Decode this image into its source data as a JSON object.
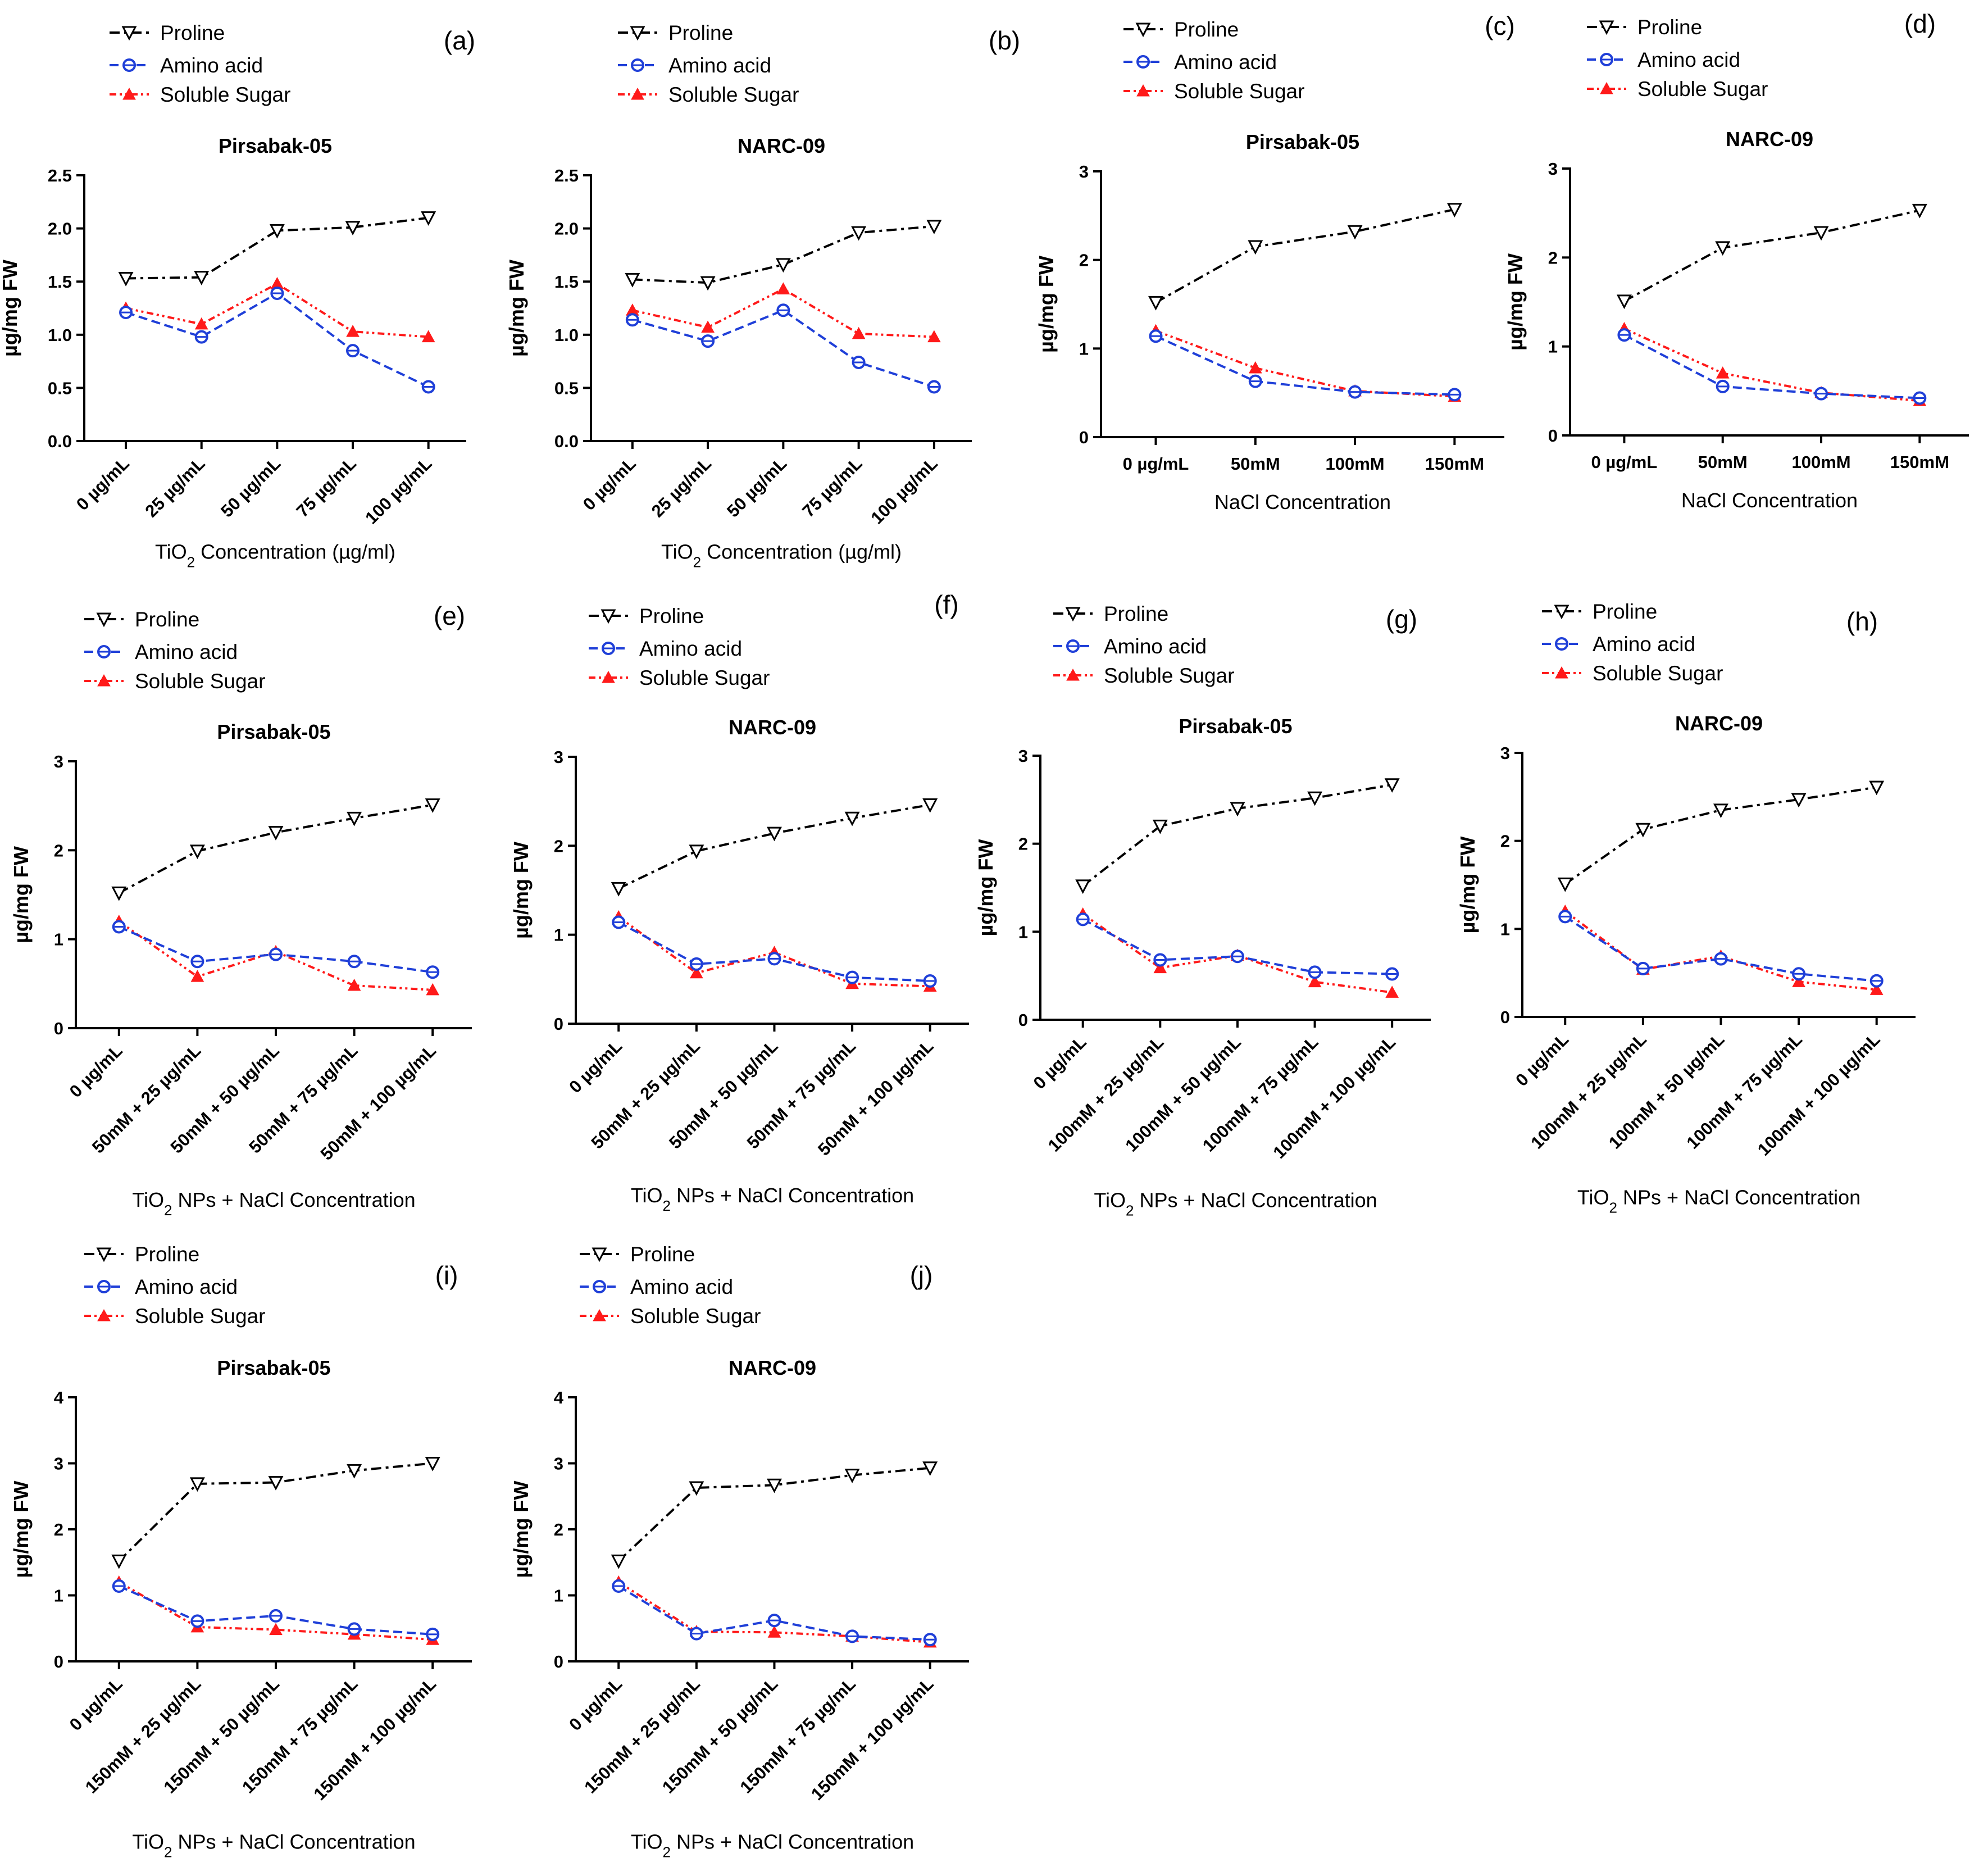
{
  "figure": {
    "legend_labels": [
      "Proline",
      "Amino acid",
      "Soluble Sugar"
    ],
    "series_colors": {
      "Proline": "#000000",
      "Amino acid": "#1f3fd8",
      "Soluble Sugar": "#ff1a1a"
    },
    "y_unit_label": "µg/mg FW"
  },
  "chart_data": [
    {
      "type": "line",
      "panel": "(a)",
      "title": "Pirsabak-05",
      "categories": [
        "0 µg/mL",
        "25 µg/mL",
        "50 µg/mL",
        "75 µg/mL",
        "100 µg/mL"
      ],
      "xlabel_main": "TiO",
      "xlabel_sub": "2",
      "xlabel_rest": " Concentration (µg/ml)",
      "ylabel": "µg/mg FW",
      "ylim": [
        0,
        2.5
      ],
      "yticks": [
        "0.0",
        "0.5",
        "1.0",
        "1.5",
        "2.0",
        "2.5"
      ],
      "series": [
        {
          "name": "Proline",
          "values": [
            1.53,
            1.54,
            1.98,
            2.01,
            2.1
          ]
        },
        {
          "name": "Amino acid",
          "values": [
            1.21,
            0.98,
            1.39,
            0.85,
            0.51
          ]
        },
        {
          "name": "Soluble Sugar",
          "values": [
            1.25,
            1.1,
            1.48,
            1.03,
            0.98
          ]
        }
      ]
    },
    {
      "type": "line",
      "panel": "(b)",
      "title": "NARC-09",
      "categories": [
        "0 µg/mL",
        "25 µg/mL",
        "50 µg/mL",
        "75 µg/mL",
        "100 µg/mL"
      ],
      "xlabel_main": "TiO",
      "xlabel_sub": "2",
      "xlabel_rest": " Concentration (µg/ml)",
      "ylabel": "µg/mg FW",
      "ylim": [
        0,
        2.5
      ],
      "yticks": [
        "0.0",
        "0.5",
        "1.0",
        "1.5",
        "2.0",
        "2.5"
      ],
      "series": [
        {
          "name": "Proline",
          "values": [
            1.52,
            1.49,
            1.66,
            1.96,
            2.02
          ]
        },
        {
          "name": "Amino acid",
          "values": [
            1.14,
            0.94,
            1.23,
            0.74,
            0.51
          ]
        },
        {
          "name": "Soluble Sugar",
          "values": [
            1.23,
            1.07,
            1.43,
            1.01,
            0.98
          ]
        }
      ]
    },
    {
      "type": "line",
      "panel": "(c)",
      "title": "Pirsabak-05",
      "categories": [
        "0 µg/mL",
        "50mM",
        "100mM",
        "150mM"
      ],
      "xlabel_main": "NaCl Concentration",
      "xlabel_sub": "",
      "xlabel_rest": "",
      "ylabel": "µg/mg FW",
      "ylim": [
        0,
        3
      ],
      "yticks": [
        "0",
        "1",
        "2",
        "3"
      ],
      "series": [
        {
          "name": "Proline",
          "values": [
            1.52,
            2.15,
            2.32,
            2.57
          ]
        },
        {
          "name": "Amino acid",
          "values": [
            1.14,
            0.63,
            0.51,
            0.48
          ]
        },
        {
          "name": "Soluble Sugar",
          "values": [
            1.2,
            0.78,
            0.52,
            0.46
          ]
        }
      ]
    },
    {
      "type": "line",
      "panel": "(d)",
      "title": "NARC-09",
      "categories": [
        "0 µg/mL",
        "50mM",
        "100mM",
        "150mM"
      ],
      "xlabel_main": "NaCl Concentration",
      "xlabel_sub": "",
      "xlabel_rest": "",
      "ylabel": "µg/mg FW",
      "ylim": [
        0,
        3
      ],
      "yticks": [
        "0",
        "1",
        "2",
        "3"
      ],
      "series": [
        {
          "name": "Proline",
          "values": [
            1.51,
            2.11,
            2.28,
            2.53
          ]
        },
        {
          "name": "Amino acid",
          "values": [
            1.13,
            0.55,
            0.47,
            0.42
          ]
        },
        {
          "name": "Soluble Sugar",
          "values": [
            1.2,
            0.7,
            0.48,
            0.39
          ]
        }
      ]
    },
    {
      "type": "line",
      "panel": "(e)",
      "title": "Pirsabak-05",
      "categories": [
        "0 µg/mL",
        "50mM + 25 µg/mL",
        "50mM + 50 µg/mL",
        "50mM + 75 µg/mL",
        "50mM + 100 µg/mL"
      ],
      "xlabel_main": "TiO",
      "xlabel_sub": "2",
      "xlabel_rest": "  NPs + NaCl Concentration",
      "ylabel": "µg/mg FW",
      "ylim": [
        0,
        3
      ],
      "yticks": [
        "0",
        "1",
        "2",
        "3"
      ],
      "series": [
        {
          "name": "Proline",
          "values": [
            1.52,
            1.99,
            2.2,
            2.36,
            2.51
          ]
        },
        {
          "name": "Amino acid",
          "values": [
            1.14,
            0.75,
            0.83,
            0.75,
            0.63
          ]
        },
        {
          "name": "Soluble Sugar",
          "values": [
            1.2,
            0.58,
            0.86,
            0.48,
            0.43
          ]
        }
      ]
    },
    {
      "type": "line",
      "panel": "(f)",
      "title": "NARC-09",
      "categories": [
        "0 µg/mL",
        "50mM + 25 µg/mL",
        "50mM + 50 µg/mL",
        "50mM + 75 µg/mL",
        "50mM + 100 µg/mL"
      ],
      "xlabel_main": "TiO",
      "xlabel_sub": "2",
      "xlabel_rest": "  NPs + NaCl Concentration",
      "ylabel": "µg/mg FW",
      "ylim": [
        0,
        3
      ],
      "yticks": [
        "0",
        "1",
        "2",
        "3"
      ],
      "series": [
        {
          "name": "Proline",
          "values": [
            1.52,
            1.94,
            2.14,
            2.31,
            2.46
          ]
        },
        {
          "name": "Amino acid",
          "values": [
            1.14,
            0.67,
            0.73,
            0.52,
            0.48
          ]
        },
        {
          "name": "Soluble Sugar",
          "values": [
            1.2,
            0.57,
            0.8,
            0.45,
            0.42
          ]
        }
      ]
    },
    {
      "type": "line",
      "panel": "(g)",
      "title": "Pirsabak-05",
      "categories": [
        "0 µg/mL",
        "100mM + 25 µg/mL",
        "100mM + 50 µg/mL",
        "100mM + 75 µg/mL",
        "100mM + 100 µg/mL"
      ],
      "xlabel_main": "TiO",
      "xlabel_sub": "2",
      "xlabel_rest": "  NPs + NaCl Concentration",
      "ylabel": "µg/mg FW",
      "ylim": [
        0,
        3
      ],
      "yticks": [
        "0",
        "1",
        "2",
        "3"
      ],
      "series": [
        {
          "name": "Proline",
          "values": [
            1.52,
            2.2,
            2.4,
            2.52,
            2.67
          ]
        },
        {
          "name": "Amino acid",
          "values": [
            1.14,
            0.68,
            0.72,
            0.54,
            0.52
          ]
        },
        {
          "name": "Soluble Sugar",
          "values": [
            1.2,
            0.59,
            0.73,
            0.43,
            0.31
          ]
        }
      ]
    },
    {
      "type": "line",
      "panel": "(h)",
      "title": "NARC-09",
      "categories": [
        "0 µg/mL",
        "100mM + 25 µg/mL",
        "100mM + 50 µg/mL",
        "100mM + 75 µg/mL",
        "100mM + 100 µg/mL"
      ],
      "xlabel_main": "TiO",
      "xlabel_sub": "2",
      "xlabel_rest": "  NPs + NaCl Concentration",
      "ylabel": "µg/mg FW",
      "ylim": [
        0,
        3
      ],
      "yticks": [
        "0",
        "1",
        "2",
        "3"
      ],
      "series": [
        {
          "name": "Proline",
          "values": [
            1.51,
            2.13,
            2.35,
            2.47,
            2.61
          ]
        },
        {
          "name": "Amino acid",
          "values": [
            1.14,
            0.55,
            0.66,
            0.49,
            0.41
          ]
        },
        {
          "name": "Soluble Sugar",
          "values": [
            1.2,
            0.54,
            0.69,
            0.4,
            0.31
          ]
        }
      ]
    },
    {
      "type": "line",
      "panel": "(i)",
      "title": "Pirsabak-05",
      "categories": [
        "0 µg/mL",
        "150mM + 25 µg/mL",
        "150mM + 50 µg/mL",
        "150mM + 75 µg/mL",
        "150mM + 100 µg/mL"
      ],
      "xlabel_main": "TiO",
      "xlabel_sub": "2",
      "xlabel_rest": "  NPs + NaCl Concentration",
      "ylabel": "µg/mg FW",
      "ylim": [
        0,
        4
      ],
      "yticks": [
        "0",
        "1",
        "2",
        "3",
        "4"
      ],
      "series": [
        {
          "name": "Proline",
          "values": [
            1.52,
            2.69,
            2.71,
            2.89,
            3.0
          ]
        },
        {
          "name": "Amino acid",
          "values": [
            1.14,
            0.61,
            0.69,
            0.49,
            0.41
          ]
        },
        {
          "name": "Soluble Sugar",
          "values": [
            1.2,
            0.52,
            0.48,
            0.41,
            0.33
          ]
        }
      ]
    },
    {
      "type": "line",
      "panel": "(j)",
      "title": "NARC-09",
      "categories": [
        "0 µg/mL",
        "150mM + 25 µg/mL",
        "150mM + 50 µg/mL",
        "150mM + 75 µg/mL",
        "150mM + 100 µg/mL"
      ],
      "xlabel_main": "TiO",
      "xlabel_sub": "2",
      "xlabel_rest": "  NPs + NaCl Concentration",
      "ylabel": "µg/mg FW",
      "ylim": [
        0,
        4
      ],
      "yticks": [
        "0",
        "1",
        "2",
        "3",
        "4"
      ],
      "series": [
        {
          "name": "Proline",
          "values": [
            1.52,
            2.63,
            2.67,
            2.82,
            2.93
          ]
        },
        {
          "name": "Amino acid",
          "values": [
            1.14,
            0.42,
            0.62,
            0.38,
            0.33
          ]
        },
        {
          "name": "Soluble Sugar",
          "values": [
            1.2,
            0.45,
            0.44,
            0.38,
            0.29
          ]
        }
      ]
    }
  ]
}
